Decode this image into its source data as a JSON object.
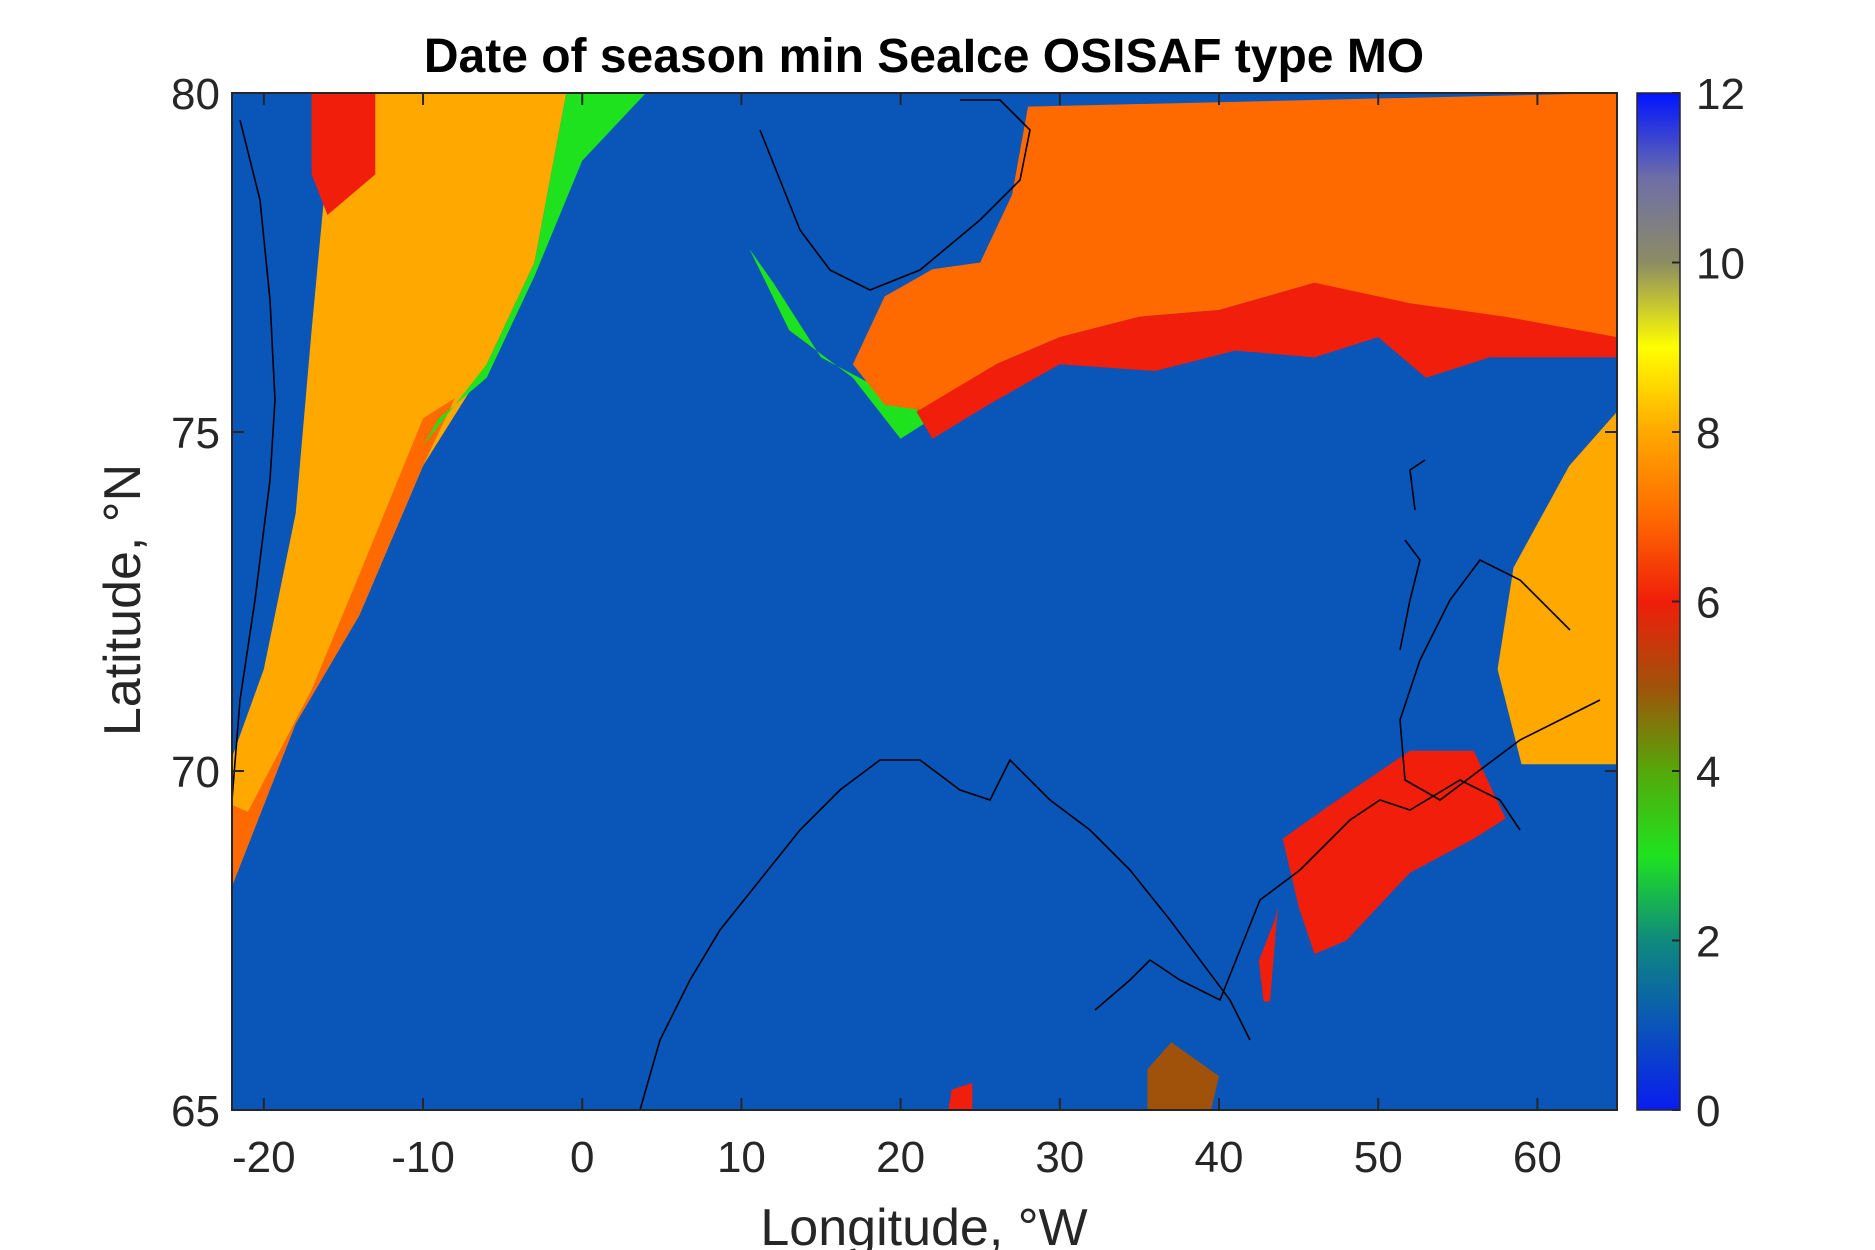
{
  "chart_data": {
    "type": "heatmap",
    "title": "Date of season min SeaIce OSISAF type MO",
    "xlabel": "Longitude, °W",
    "ylabel": "Latitude, °N",
    "xlim": [
      -22,
      65
    ],
    "ylim": [
      65,
      80
    ],
    "xticks": [
      -20,
      -10,
      0,
      10,
      20,
      30,
      40,
      50,
      60
    ],
    "yticks": [
      65,
      70,
      75,
      80
    ],
    "colorbar": {
      "range": [
        0,
        12
      ],
      "ticks": [
        0,
        2,
        4,
        6,
        8,
        10,
        12
      ],
      "colormap": "blue-green-red-orange-yellow-grey-blue",
      "stops": [
        {
          "value": 0,
          "color": "#0a1cf0"
        },
        {
          "value": 1,
          "color": "#0a55b8"
        },
        {
          "value": 2,
          "color": "#0f8a7c"
        },
        {
          "value": 3,
          "color": "#1fe21f"
        },
        {
          "value": 4,
          "color": "#55a80a"
        },
        {
          "value": 5,
          "color": "#a0520a"
        },
        {
          "value": 6,
          "color": "#f01e0a"
        },
        {
          "value": 7,
          "color": "#ff6a00"
        },
        {
          "value": 8,
          "color": "#ffa800"
        },
        {
          "value": 9,
          "color": "#ffff00"
        },
        {
          "value": 10,
          "color": "#8c8c64"
        },
        {
          "value": 11,
          "color": "#6e6ea8"
        },
        {
          "value": 12,
          "color": "#0014ff"
        }
      ]
    },
    "background_value": 1,
    "regions": [
      {
        "name": "greenland-orange",
        "value": 8,
        "lonlat": [
          [
            -22,
            70.2
          ],
          [
            -20,
            71.5
          ],
          [
            -18,
            73.8
          ],
          [
            -17,
            76.5
          ],
          [
            -16,
            79
          ],
          [
            -14,
            80
          ],
          [
            -1,
            80
          ],
          [
            -3,
            77.5
          ],
          [
            -6,
            76
          ],
          [
            -10,
            74.5
          ],
          [
            -14,
            72.3
          ],
          [
            -18,
            70.7
          ],
          [
            -22,
            68.3
          ]
        ]
      },
      {
        "name": "greenland-dark-orange",
        "value": 7,
        "lonlat": [
          [
            -22,
            68.3
          ],
          [
            -18,
            70.7
          ],
          [
            -14,
            72.3
          ],
          [
            -10,
            74.5
          ],
          [
            -8,
            75.5
          ],
          [
            -10,
            75.2
          ],
          [
            -14,
            72.9
          ],
          [
            -17,
            71.2
          ],
          [
            -21,
            69.4
          ],
          [
            -22,
            69.5
          ]
        ]
      },
      {
        "name": "greenland-green-edge",
        "value": 3,
        "lonlat": [
          [
            -9,
            75.2
          ],
          [
            -6,
            75.8
          ],
          [
            -3,
            77.3
          ],
          [
            0,
            79
          ],
          [
            4,
            80
          ],
          [
            -1,
            80
          ],
          [
            -3,
            77.5
          ],
          [
            -6,
            76
          ],
          [
            -10,
            74.8
          ]
        ]
      },
      {
        "name": "greenland-red-patch",
        "value": 6,
        "lonlat": [
          [
            -17,
            80
          ],
          [
            -13,
            80
          ],
          [
            -13,
            78.8
          ],
          [
            -16,
            78.2
          ],
          [
            -17,
            78.8
          ]
        ]
      },
      {
        "name": "svalbard-shelf-green",
        "value": 3,
        "lonlat": [
          [
            10.5,
            77.7
          ],
          [
            13,
            76.5
          ],
          [
            17,
            75.8
          ],
          [
            20,
            74.9
          ],
          [
            22,
            75.2
          ],
          [
            19,
            75.6
          ],
          [
            15,
            76.1
          ],
          [
            12,
            77.2
          ]
        ]
      },
      {
        "name": "barents-orange",
        "value": 7,
        "lonlat": [
          [
            17,
            76
          ],
          [
            19,
            77
          ],
          [
            22,
            77.4
          ],
          [
            25,
            77.5
          ],
          [
            27,
            78.5
          ],
          [
            28,
            79.8
          ],
          [
            65,
            80
          ],
          [
            65,
            76.3
          ],
          [
            58,
            76.5
          ],
          [
            52,
            76.8
          ],
          [
            46,
            77.2
          ],
          [
            40,
            76.8
          ],
          [
            35,
            76.7
          ],
          [
            30,
            76.4
          ],
          [
            26,
            76
          ],
          [
            22,
            75.3
          ],
          [
            19,
            75.4
          ]
        ]
      },
      {
        "name": "barents-red-band",
        "value": 6,
        "lonlat": [
          [
            21,
            75.3
          ],
          [
            26,
            76
          ],
          [
            30,
            76.4
          ],
          [
            35,
            76.7
          ],
          [
            40,
            76.8
          ],
          [
            46,
            77.2
          ],
          [
            52,
            76.9
          ],
          [
            58,
            76.7
          ],
          [
            65,
            76.4
          ],
          [
            65,
            76.1
          ],
          [
            57,
            76.1
          ],
          [
            53,
            75.8
          ],
          [
            50,
            76.4
          ],
          [
            46,
            76.1
          ],
          [
            41,
            76.2
          ],
          [
            36,
            75.9
          ],
          [
            30,
            76
          ],
          [
            25.5,
            75.4
          ],
          [
            22,
            74.9
          ]
        ]
      },
      {
        "name": "novaya-zemlya-orange",
        "value": 8,
        "lonlat": [
          [
            65,
            75.3
          ],
          [
            62,
            74.5
          ],
          [
            58.5,
            73
          ],
          [
            57.5,
            71.5
          ],
          [
            59,
            70.1
          ],
          [
            65,
            70.1
          ]
        ]
      },
      {
        "name": "white-sea-red",
        "value": 6,
        "lonlat": [
          [
            44,
            69
          ],
          [
            47,
            69.5
          ],
          [
            52,
            70.3
          ],
          [
            56,
            70.3
          ],
          [
            58,
            69.3
          ],
          [
            56,
            69
          ],
          [
            52,
            68.5
          ],
          [
            48,
            67.5
          ],
          [
            46,
            67.3
          ],
          [
            45,
            68
          ]
        ]
      },
      {
        "name": "kanin-red",
        "value": 6,
        "lonlat": [
          [
            42.5,
            67.2
          ],
          [
            43.5,
            67.8
          ],
          [
            43.7,
            68
          ],
          [
            43.2,
            66.6
          ],
          [
            42.8,
            66.6
          ]
        ]
      },
      {
        "name": "onega-brown",
        "value": 5,
        "lonlat": [
          [
            35.5,
            65
          ],
          [
            39.5,
            65
          ],
          [
            40,
            65.5
          ],
          [
            37,
            66
          ],
          [
            35.5,
            65.6
          ]
        ]
      },
      {
        "name": "small-red-patch",
        "value": 6,
        "lonlat": [
          [
            23,
            65
          ],
          [
            24.5,
            65
          ],
          [
            24.5,
            65.4
          ],
          [
            23.2,
            65.3
          ]
        ]
      }
    ]
  }
}
